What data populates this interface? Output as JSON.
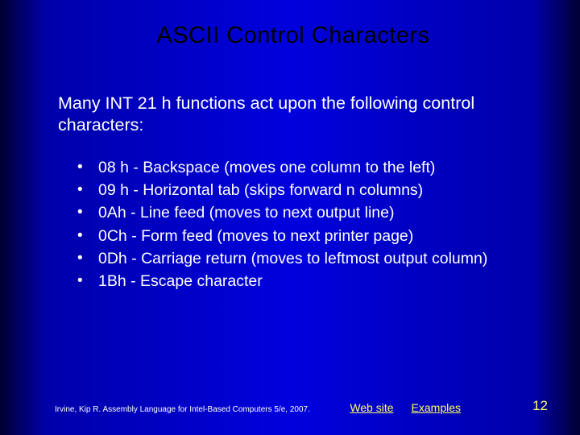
{
  "colors": {
    "background_gradient": [
      "#000033",
      "#0000aa",
      "#0000dd",
      "#0000aa",
      "#000033"
    ],
    "title_color": "#000000",
    "body_text_color": "#ffffff",
    "link_color": "#ffff66",
    "pagenum_color": "#ffff66"
  },
  "typography": {
    "title_fontsize_pt": 29,
    "intro_fontsize_pt": 21.5,
    "bullet_fontsize_pt": 19.5,
    "citation_fontsize_pt": 10,
    "link_fontsize_pt": 14,
    "pagenum_fontsize_pt": 17,
    "font_family": "Arial"
  },
  "title": "ASCII Control Characters",
  "intro": "Many INT 21 h functions act upon the following control characters:",
  "bullets": [
    "08 h - Backspace (moves one column to the left)",
    "09 h - Horizontal tab (skips forward n columns)",
    "0Ah - Line feed (moves to next output line)",
    "0Ch - Form feed (moves to next printer page)",
    "0Dh - Carriage return (moves to leftmost output column)",
    "1Bh - Escape character"
  ],
  "footer": {
    "citation": "Irvine, Kip R. Assembly Language for Intel-Based Computers 5/e, 2007.",
    "links": [
      {
        "label": "Web site"
      },
      {
        "label": "Examples"
      }
    ],
    "page_number": "12"
  }
}
